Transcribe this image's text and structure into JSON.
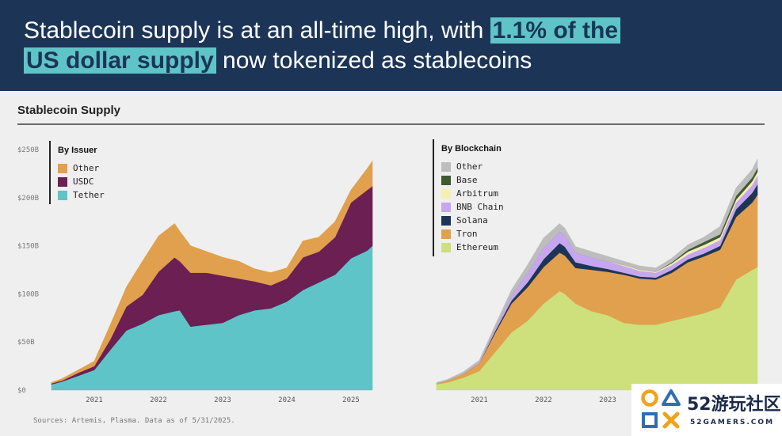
{
  "header": {
    "part1": "Stablecoin supply is at an all-time high, with ",
    "highlight1": "1.1% of the",
    "highlight2": "US dollar supply",
    "part2": " now tokenized as stablecoins"
  },
  "section_title": "Stablecoin Supply",
  "sources": "Sources: Artemis, Plasma. Data as of 5/31/2025.",
  "colors": {
    "header_bg": "#1c3557",
    "highlight": "#5ec4c8",
    "page_bg": "#efefef"
  },
  "watermark": {
    "brand": "52游玩社区",
    "url": "52GAMERS.COM"
  },
  "chart_data": [
    {
      "type": "area",
      "stacked": true,
      "title": "By Issuer",
      "legend": "top-left",
      "grid": false,
      "unit": "$B",
      "ylim": [
        0,
        250
      ],
      "ytick_values": [
        0,
        50,
        100,
        150,
        200,
        250
      ],
      "yticks": [
        "$0",
        "$50B",
        "$100B",
        "$150B",
        "$200B",
        "$250B"
      ],
      "xticks": [
        "2021",
        "2022",
        "2023",
        "2024",
        "2025"
      ],
      "x": [
        "2020-05",
        "2020-07",
        "2020-10",
        "2021-01",
        "2021-04",
        "2021-07",
        "2021-10",
        "2022-01",
        "2022-04",
        "2022-05",
        "2022-07",
        "2022-10",
        "2023-01",
        "2023-04",
        "2023-07",
        "2023-10",
        "2024-01",
        "2024-04",
        "2024-07",
        "2024-10",
        "2025-01",
        "2025-04",
        "2025-05"
      ],
      "series": [
        {
          "name": "Tether",
          "color": "#5ec4c8",
          "values": [
            6,
            9,
            15,
            21,
            42,
            62,
            69,
            78,
            82,
            83,
            66,
            68,
            70,
            78,
            83,
            85,
            92,
            104,
            112,
            120,
            137,
            145,
            150
          ]
        },
        {
          "name": "USDC",
          "color": "#6b1f52",
          "values": [
            1,
            1,
            3,
            4,
            11,
            25,
            30,
            45,
            56,
            51,
            56,
            54,
            49,
            38,
            30,
            24,
            24,
            34,
            32,
            39,
            58,
            63,
            62
          ]
        },
        {
          "name": "Other",
          "color": "#e0a04e",
          "values": [
            1,
            2,
            3,
            5,
            15,
            20,
            35,
            37,
            35,
            31,
            28,
            22,
            19,
            18,
            13,
            13,
            11,
            17,
            15,
            16,
            13,
            22,
            26
          ]
        }
      ]
    },
    {
      "type": "area",
      "stacked": true,
      "title": "By Blockchain",
      "legend": "top-left",
      "grid": false,
      "unit": "$B",
      "ylim": [
        0,
        250
      ],
      "xticks": [
        "2021",
        "2022",
        "2023"
      ],
      "x": [
        "2020-05",
        "2020-07",
        "2020-10",
        "2021-01",
        "2021-04",
        "2021-07",
        "2021-10",
        "2022-01",
        "2022-04",
        "2022-05",
        "2022-07",
        "2022-10",
        "2023-01",
        "2023-04",
        "2023-07",
        "2023-10",
        "2024-01",
        "2024-04",
        "2024-07",
        "2024-10",
        "2025-01",
        "2025-04",
        "2025-05"
      ],
      "series": [
        {
          "name": "Ethereum",
          "color": "#cde07c",
          "values": [
            6,
            8,
            13,
            20,
            40,
            60,
            72,
            90,
            103,
            100,
            90,
            82,
            78,
            70,
            68,
            68,
            72,
            76,
            80,
            86,
            115,
            125,
            128
          ]
        },
        {
          "name": "Tron",
          "color": "#e0a04e",
          "values": [
            1,
            2,
            4,
            8,
            20,
            30,
            35,
            38,
            40,
            40,
            37,
            43,
            45,
            50,
            48,
            47,
            50,
            57,
            59,
            60,
            65,
            70,
            75
          ]
        },
        {
          "name": "Solana",
          "color": "#1c3557",
          "values": [
            0,
            0,
            0,
            0,
            2,
            3,
            5,
            8,
            10,
            9,
            6,
            4,
            3,
            2,
            2,
            2,
            3,
            3,
            3,
            4,
            8,
            10,
            11
          ]
        },
        {
          "name": "BNB Chain",
          "color": "#c6a6ee",
          "values": [
            0,
            0,
            0,
            1,
            3,
            5,
            10,
            12,
            12,
            12,
            10,
            9,
            8,
            7,
            6,
            5,
            5,
            5,
            6,
            6,
            7,
            8,
            9
          ]
        },
        {
          "name": "Arbitrum",
          "color": "#f6efb2",
          "values": [
            0,
            0,
            0,
            0,
            0,
            0,
            0,
            0,
            0,
            0,
            0,
            0,
            0,
            1,
            1,
            1,
            2,
            3,
            3,
            3,
            3,
            4,
            4
          ]
        },
        {
          "name": "Base",
          "color": "#3e5a30",
          "values": [
            0,
            0,
            0,
            0,
            0,
            0,
            0,
            0,
            0,
            0,
            0,
            0,
            0,
            0,
            0,
            0,
            1,
            2,
            3,
            3,
            4,
            4,
            4
          ]
        },
        {
          "name": "Other",
          "color": "#bdbdbd",
          "values": [
            1,
            1,
            2,
            2,
            3,
            6,
            8,
            10,
            8,
            7,
            6,
            6,
            5,
            4,
            4,
            4,
            4,
            5,
            5,
            8,
            8,
            8,
            9
          ]
        }
      ]
    }
  ]
}
